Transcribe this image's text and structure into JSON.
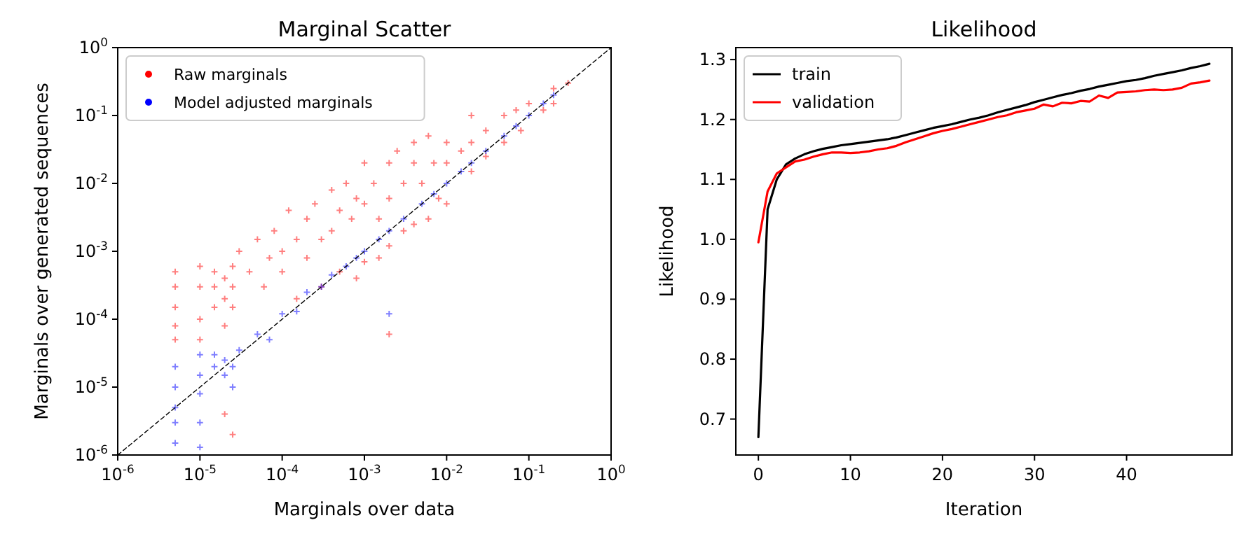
{
  "chart_data": [
    {
      "type": "scatter",
      "title": "Marginal Scatter",
      "xlabel": "Marginals over data",
      "ylabel": "Marginals over generated sequences",
      "log": "xy",
      "xlim": [
        1e-06,
        1
      ],
      "ylim": [
        1e-06,
        1
      ],
      "xticks": [
        {
          "value": 1e-06,
          "label": "10$^{-6}$"
        },
        {
          "value": 1e-05,
          "label": "10$^{-5}$"
        },
        {
          "value": 0.0001,
          "label": "10$^{-4}$"
        },
        {
          "value": 0.001,
          "label": "10$^{-3}$"
        },
        {
          "value": 0.01,
          "label": "10$^{-2}$"
        },
        {
          "value": 0.1,
          "label": "10$^{-1}$"
        },
        {
          "value": 1,
          "label": "10$^{0}$"
        }
      ],
      "yticks": [
        {
          "value": 1e-06,
          "label": "10$^{-6}$"
        },
        {
          "value": 1e-05,
          "label": "10$^{-5}$"
        },
        {
          "value": 0.0001,
          "label": "10$^{-4}$"
        },
        {
          "value": 0.001,
          "label": "10$^{-3}$"
        },
        {
          "value": 0.01,
          "label": "10$^{-2}$"
        },
        {
          "value": 0.1,
          "label": "10$^{-1}$"
        },
        {
          "value": 1,
          "label": "10$^{0}$"
        }
      ],
      "legend": "top left",
      "marker": "cross",
      "grid": false,
      "series": [
        {
          "name": "Raw marginals",
          "color": "#ff0000",
          "x": [
            5e-06,
            5e-06,
            5e-06,
            5e-06,
            5e-06,
            1e-05,
            1e-05,
            1e-05,
            1e-05,
            1.5e-05,
            1.5e-05,
            1.5e-05,
            2e-05,
            2e-05,
            2e-05,
            2e-05,
            2.5e-05,
            2.5e-05,
            2.5e-05,
            2.5e-05,
            3e-05,
            4e-05,
            5e-05,
            6e-05,
            7e-05,
            8e-05,
            0.0001,
            0.0001,
            0.00012,
            0.00015,
            0.00015,
            0.0002,
            0.0002,
            0.00025,
            0.0003,
            0.0003,
            0.0004,
            0.0004,
            0.0005,
            0.0005,
            0.0006,
            0.0007,
            0.0008,
            0.0008,
            0.001,
            0.001,
            0.001,
            0.0013,
            0.0015,
            0.0015,
            0.002,
            0.002,
            0.002,
            0.002,
            0.0025,
            0.003,
            0.003,
            0.004,
            0.004,
            0.004,
            0.005,
            0.006,
            0.006,
            0.007,
            0.008,
            0.01,
            0.01,
            0.01,
            0.015,
            0.02,
            0.02,
            0.02,
            0.03,
            0.03,
            0.05,
            0.05,
            0.07,
            0.08,
            0.1,
            0.15,
            0.2,
            0.2,
            0.3
          ],
          "values": [
            0.0005,
            0.0003,
            0.00015,
            8e-05,
            5e-05,
            0.0006,
            0.0003,
            0.0001,
            5e-05,
            0.0005,
            0.0003,
            0.00015,
            0.0004,
            0.0002,
            8e-05,
            4e-06,
            0.0006,
            0.0003,
            0.00015,
            2e-06,
            0.001,
            0.0005,
            0.0015,
            0.0003,
            0.0008,
            0.002,
            0.001,
            0.0005,
            0.004,
            0.0015,
            0.0002,
            0.003,
            0.0008,
            0.005,
            0.0015,
            0.0003,
            0.008,
            0.002,
            0.004,
            0.0005,
            0.01,
            0.003,
            0.006,
            0.0004,
            0.02,
            0.005,
            0.0007,
            0.01,
            0.003,
            0.0008,
            0.02,
            0.006,
            0.0012,
            6e-05,
            0.03,
            0.01,
            0.002,
            0.04,
            0.02,
            0.0025,
            0.01,
            0.05,
            0.003,
            0.02,
            0.006,
            0.04,
            0.02,
            0.005,
            0.03,
            0.1,
            0.04,
            0.015,
            0.06,
            0.025,
            0.1,
            0.04,
            0.12,
            0.06,
            0.15,
            0.12,
            0.25,
            0.15,
            0.3
          ]
        },
        {
          "name": "Model adjusted marginals",
          "color": "#0000ff",
          "x": [
            5e-06,
            5e-06,
            5e-06,
            5e-06,
            5e-06,
            1e-05,
            1e-05,
            1e-05,
            1e-05,
            1e-05,
            1.5e-05,
            1.5e-05,
            2e-05,
            2e-05,
            2.5e-05,
            2.5e-05,
            3e-05,
            5e-05,
            7e-05,
            0.0001,
            0.00015,
            0.0002,
            0.0003,
            0.0004,
            0.0006,
            0.0008,
            0.001,
            0.0015,
            0.002,
            0.002,
            0.003,
            0.005,
            0.007,
            0.01,
            0.015,
            0.02,
            0.03,
            0.05,
            0.07,
            0.1,
            0.15,
            0.2
          ],
          "values": [
            2e-05,
            1e-05,
            5e-06,
            3e-06,
            1.5e-06,
            3e-05,
            1.5e-05,
            8e-06,
            3e-06,
            1.3e-06,
            3e-05,
            2e-05,
            2.5e-05,
            1.5e-05,
            2e-05,
            1e-05,
            3.5e-05,
            6e-05,
            5e-05,
            0.00012,
            0.00013,
            0.00025,
            0.0003,
            0.00045,
            0.0006,
            0.0008,
            0.001,
            0.0015,
            0.002,
            0.00012,
            0.003,
            0.005,
            0.007,
            0.01,
            0.015,
            0.02,
            0.03,
            0.05,
            0.07,
            0.1,
            0.15,
            0.2
          ]
        },
        {
          "type": "line",
          "color": "#000000",
          "line_style": "dashed",
          "marker": "none",
          "x": [
            1e-06,
            1
          ],
          "values": [
            1e-06,
            1
          ]
        }
      ]
    },
    {
      "type": "line",
      "title": "Likelihood",
      "xlabel": "Iteration",
      "ylabel": "Likelihood",
      "xlim": [
        -2.45,
        51.45
      ],
      "ylim": [
        0.64,
        1.32
      ],
      "xticks": [
        0,
        10,
        20,
        30,
        40
      ],
      "yticks": [
        0.7,
        0.8,
        0.9,
        {
          "value": 1,
          "label": "1.0"
        },
        1.1,
        1.2,
        1.3
      ],
      "legend": "top left",
      "grid": false,
      "marker": "none",
      "line_style": "solid",
      "x": [
        0,
        1,
        2,
        3,
        4,
        5,
        6,
        7,
        8,
        9,
        10,
        11,
        12,
        13,
        14,
        15,
        16,
        17,
        18,
        19,
        20,
        21,
        22,
        23,
        24,
        25,
        26,
        27,
        28,
        29,
        30,
        31,
        32,
        33,
        34,
        35,
        36,
        37,
        38,
        39,
        40,
        41,
        42,
        43,
        44,
        45,
        46,
        47,
        48,
        49
      ],
      "series": [
        {
          "name": "train",
          "color": "#000000",
          "values": [
            0.67,
            1.05,
            1.1,
            1.125,
            1.135,
            1.142,
            1.147,
            1.151,
            1.154,
            1.157,
            1.159,
            1.161,
            1.163,
            1.165,
            1.167,
            1.17,
            1.174,
            1.178,
            1.182,
            1.186,
            1.189,
            1.192,
            1.196,
            1.2,
            1.203,
            1.207,
            1.212,
            1.216,
            1.22,
            1.224,
            1.229,
            1.233,
            1.237,
            1.241,
            1.244,
            1.248,
            1.251,
            1.255,
            1.258,
            1.261,
            1.264,
            1.266,
            1.269,
            1.273,
            1.276,
            1.279,
            1.282,
            1.286,
            1.289,
            1.293
          ]
        },
        {
          "name": "validation",
          "color": "#ff0000",
          "values": [
            0.995,
            1.08,
            1.11,
            1.12,
            1.13,
            1.133,
            1.138,
            1.142,
            1.145,
            1.145,
            1.144,
            1.145,
            1.147,
            1.15,
            1.152,
            1.156,
            1.162,
            1.167,
            1.172,
            1.177,
            1.181,
            1.184,
            1.188,
            1.192,
            1.196,
            1.2,
            1.204,
            1.207,
            1.212,
            1.215,
            1.218,
            1.225,
            1.222,
            1.228,
            1.227,
            1.231,
            1.23,
            1.24,
            1.236,
            1.245,
            1.246,
            1.247,
            1.249,
            1.25,
            1.249,
            1.25,
            1.253,
            1.26,
            1.262,
            1.265
          ]
        }
      ]
    }
  ]
}
